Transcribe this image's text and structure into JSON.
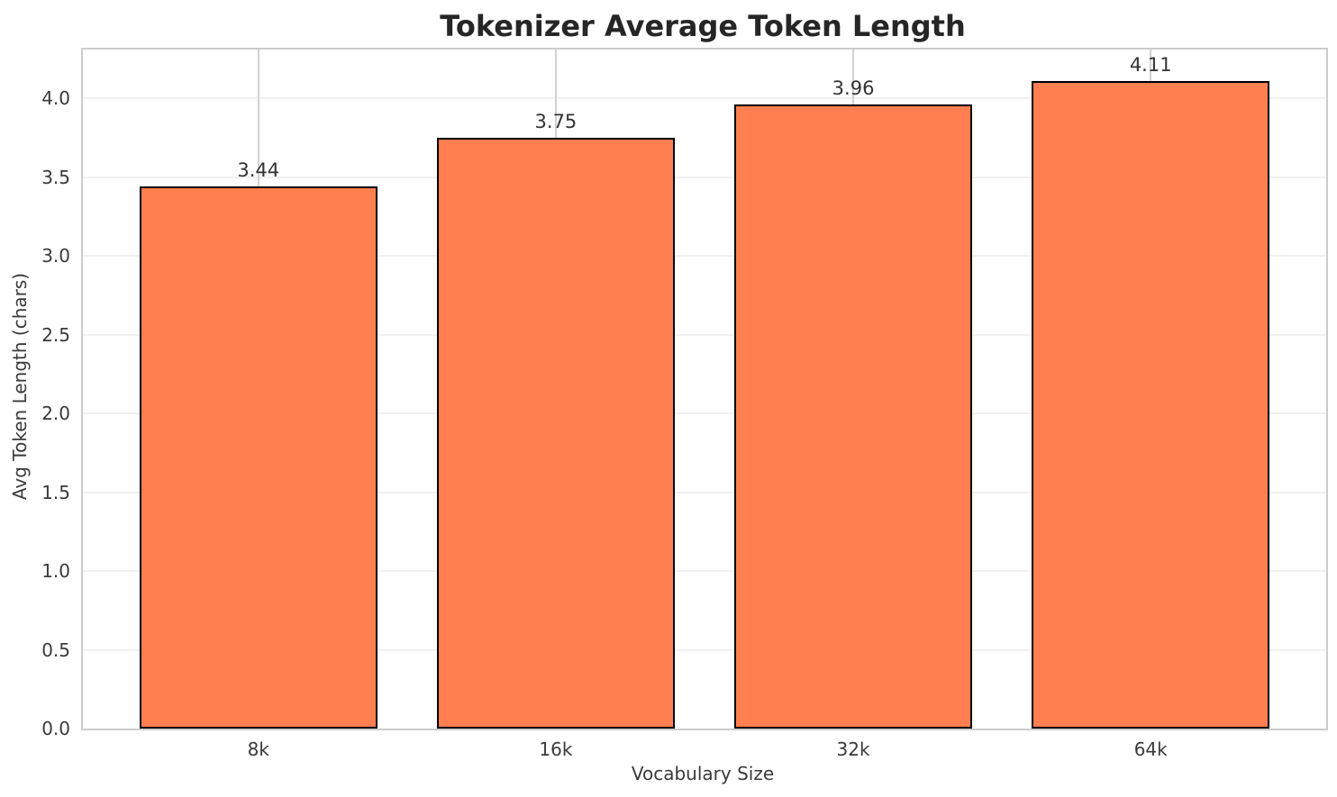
{
  "title": "Tokenizer Average Token Length",
  "colors": {
    "bar_fill": "#FF7F50",
    "bar_edge": "#000000",
    "grid_horizontal": "#f0f0f0",
    "grid_vertical": "#d2d2d2",
    "spine": "#cccccc",
    "title_text": "#262626",
    "tick_text": "#3a3a3a"
  },
  "chart_data": {
    "type": "bar",
    "title": "Tokenizer Average Token Length",
    "categories": [
      "8k",
      "16k",
      "32k",
      "64k"
    ],
    "values": [
      3.44,
      3.75,
      3.96,
      4.11
    ],
    "value_labels": [
      "3.44",
      "3.75",
      "3.96",
      "4.11"
    ],
    "xlabel": "Vocabulary Size",
    "ylabel": "Avg Token Length (chars)",
    "ylim": [
      0,
      4.31
    ],
    "y_ticks": [
      0.0,
      0.5,
      1.0,
      1.5,
      2.0,
      2.5,
      3.0,
      3.5,
      4.0
    ],
    "y_tick_labels": [
      "0.0",
      "0.5",
      "1.0",
      "1.5",
      "2.0",
      "2.5",
      "3.0",
      "3.5",
      "4.0"
    ],
    "grid": true,
    "legend": false,
    "bar_color_name": "coral"
  }
}
